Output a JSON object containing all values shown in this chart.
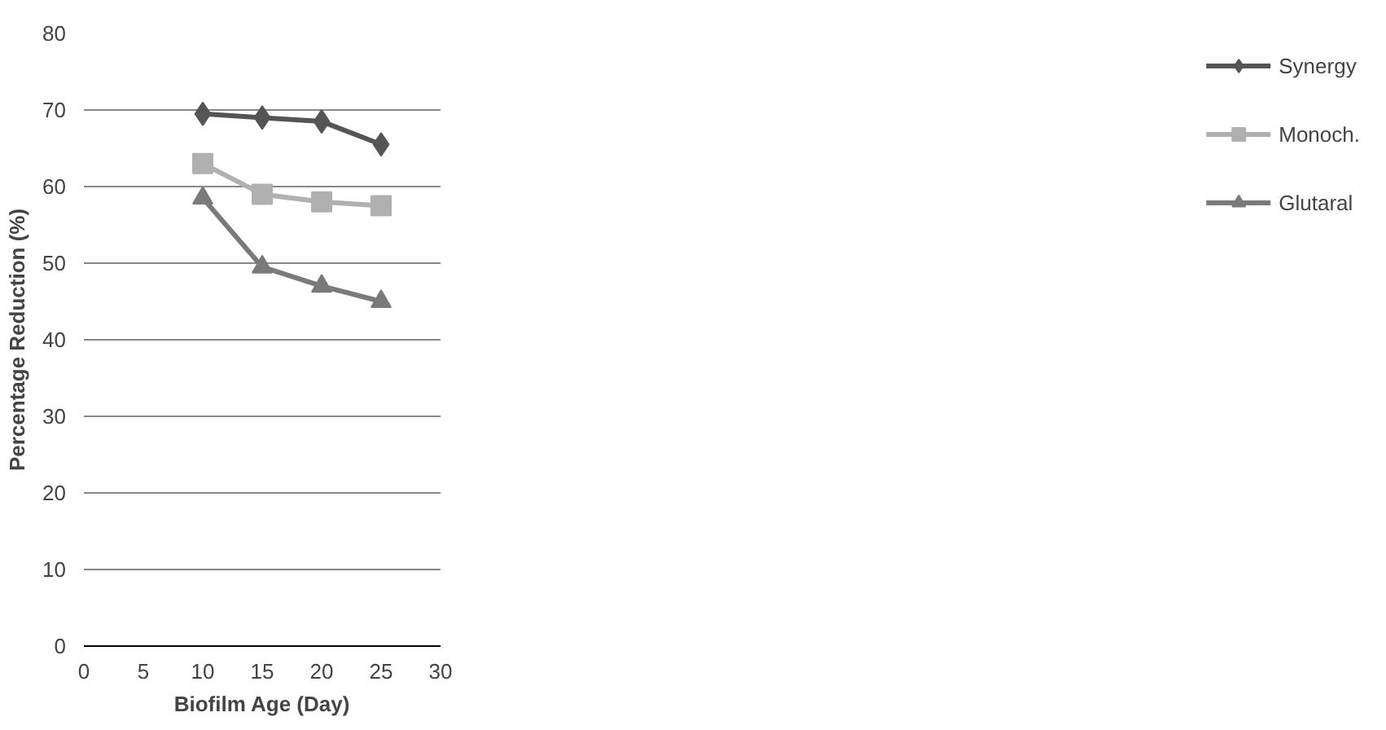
{
  "chart_data": {
    "type": "line",
    "xlabel": "Biofilm Age (Day)",
    "ylabel": "Percentage Reduction (%)",
    "x": [
      10,
      15,
      20,
      25
    ],
    "series": [
      {
        "name": "Synergy",
        "color": "#555555",
        "marker": "diamond",
        "values": [
          69.5,
          69,
          68.5,
          65.5
        ]
      },
      {
        "name": "Monoch.",
        "color": "#b0b0b0",
        "marker": "square",
        "values": [
          63,
          59,
          58,
          57.5
        ]
      },
      {
        "name": "Glutaral",
        "color": "#7a7a7a",
        "marker": "triangle",
        "values": [
          58.5,
          49.5,
          47,
          45
        ]
      }
    ],
    "xlim": [
      0,
      30
    ],
    "xticks": [
      0,
      5,
      10,
      15,
      20,
      25,
      30
    ],
    "ylim": [
      0,
      80
    ],
    "yticks": [
      0,
      10,
      20,
      30,
      40,
      50,
      60,
      70,
      80
    ],
    "grid": "y",
    "legend": "right"
  }
}
